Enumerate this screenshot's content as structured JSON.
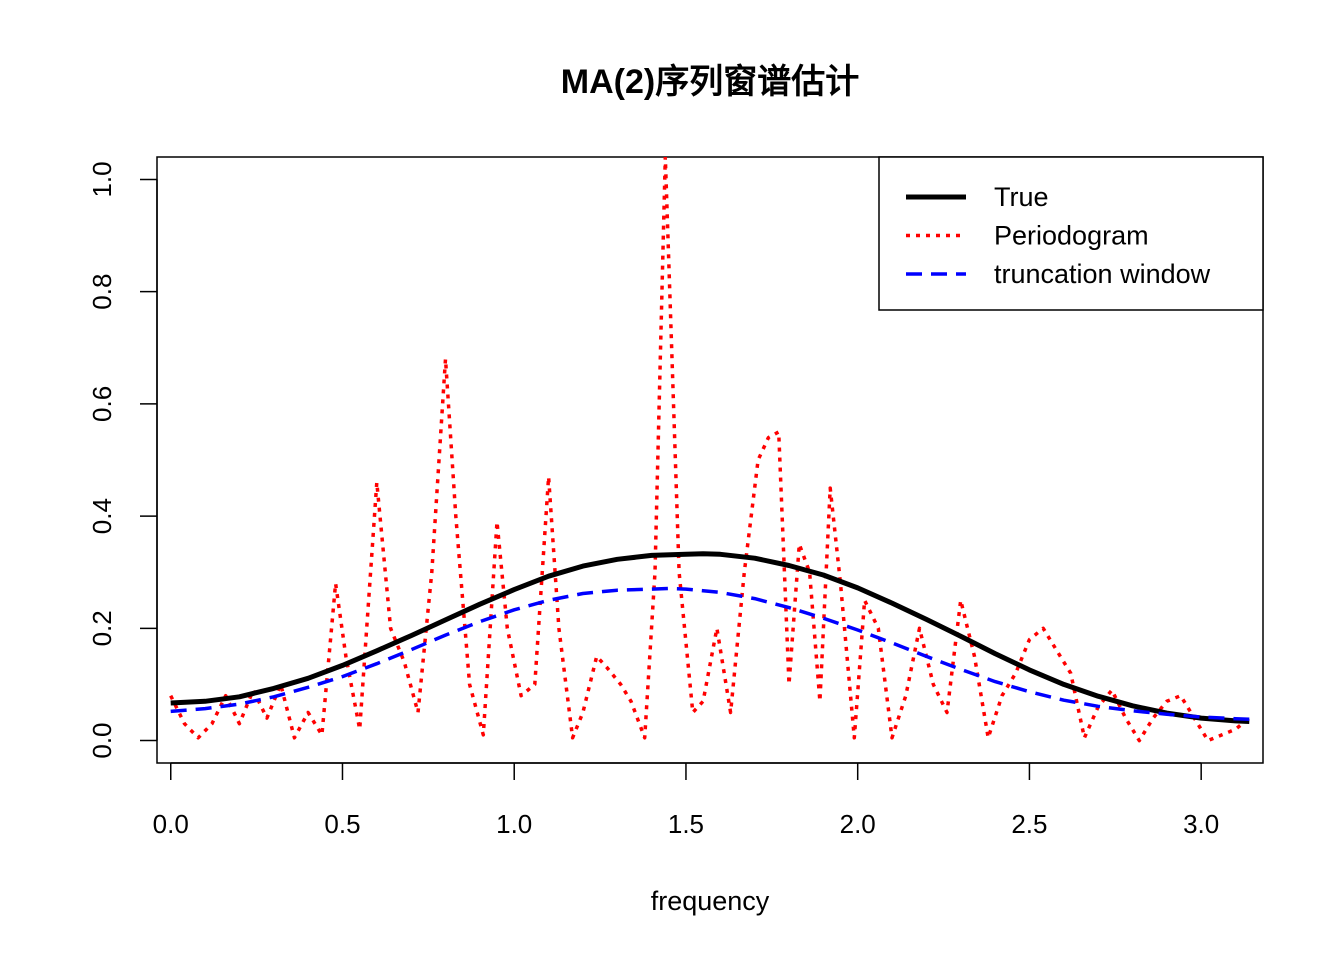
{
  "chart_data": {
    "type": "line",
    "title": "MA(2)序列窗谱估计",
    "xlabel": "frequency",
    "ylabel": "",
    "xlim": [
      -0.04,
      3.18
    ],
    "ylim": [
      -0.04,
      1.04
    ],
    "x_ticks": [
      0.0,
      0.5,
      1.0,
      1.5,
      2.0,
      2.5,
      3.0
    ],
    "x_tick_labels": [
      "0.0",
      "0.5",
      "1.0",
      "1.5",
      "2.0",
      "2.5",
      "3.0"
    ],
    "y_ticks": [
      0.0,
      0.2,
      0.4,
      0.6,
      0.8,
      1.0
    ],
    "y_tick_labels": [
      "0.0",
      "0.2",
      "0.4",
      "0.6",
      "0.8",
      "1.0"
    ],
    "grid": false,
    "legend": {
      "position": "top-right",
      "boxed": true
    },
    "series": [
      {
        "name": "True",
        "color": "#000000",
        "line_style": "solid",
        "x": [
          0.0,
          0.1,
          0.2,
          0.3,
          0.4,
          0.5,
          0.6,
          0.7,
          0.8,
          0.9,
          1.0,
          1.1,
          1.2,
          1.3,
          1.4,
          1.5,
          1.55,
          1.6,
          1.7,
          1.8,
          1.9,
          2.0,
          2.1,
          2.2,
          2.3,
          2.4,
          2.5,
          2.6,
          2.7,
          2.8,
          2.9,
          3.0,
          3.1,
          3.14
        ],
        "y": [
          0.067,
          0.07,
          0.078,
          0.093,
          0.111,
          0.134,
          0.16,
          0.187,
          0.215,
          0.243,
          0.269,
          0.293,
          0.311,
          0.323,
          0.33,
          0.332,
          0.333,
          0.332,
          0.325,
          0.312,
          0.295,
          0.272,
          0.245,
          0.216,
          0.186,
          0.155,
          0.126,
          0.1,
          0.079,
          0.062,
          0.049,
          0.04,
          0.035,
          0.034
        ]
      },
      {
        "name": "Periodogram",
        "color": "#ff0000",
        "line_style": "dotted",
        "x": [
          0.0,
          0.04,
          0.08,
          0.12,
          0.16,
          0.2,
          0.24,
          0.28,
          0.32,
          0.36,
          0.4,
          0.44,
          0.48,
          0.51,
          0.55,
          0.6,
          0.64,
          0.68,
          0.72,
          0.76,
          0.8,
          0.83,
          0.87,
          0.91,
          0.95,
          0.98,
          1.02,
          1.06,
          1.1,
          1.13,
          1.17,
          1.2,
          1.24,
          1.27,
          1.31,
          1.34,
          1.38,
          1.41,
          1.44,
          1.48,
          1.52,
          1.55,
          1.59,
          1.63,
          1.67,
          1.71,
          1.74,
          1.77,
          1.8,
          1.83,
          1.86,
          1.89,
          1.92,
          1.95,
          1.99,
          2.02,
          2.06,
          2.1,
          2.14,
          2.18,
          2.22,
          2.26,
          2.3,
          2.34,
          2.38,
          2.42,
          2.46,
          2.5,
          2.54,
          2.58,
          2.62,
          2.66,
          2.7,
          2.74,
          2.78,
          2.82,
          2.86,
          2.9,
          2.94,
          2.98,
          3.02,
          3.06,
          3.1,
          3.14
        ],
        "y": [
          0.08,
          0.03,
          0.005,
          0.03,
          0.08,
          0.03,
          0.09,
          0.04,
          0.1,
          0.005,
          0.05,
          0.01,
          0.28,
          0.15,
          0.02,
          0.46,
          0.2,
          0.14,
          0.05,
          0.3,
          0.68,
          0.4,
          0.1,
          0.01,
          0.39,
          0.2,
          0.08,
          0.1,
          0.47,
          0.2,
          0.005,
          0.05,
          0.15,
          0.13,
          0.1,
          0.07,
          0.005,
          0.3,
          1.04,
          0.3,
          0.05,
          0.07,
          0.2,
          0.05,
          0.3,
          0.5,
          0.54,
          0.55,
          0.1,
          0.35,
          0.3,
          0.07,
          0.45,
          0.28,
          0.005,
          0.25,
          0.2,
          0.005,
          0.08,
          0.2,
          0.1,
          0.05,
          0.25,
          0.15,
          0.005,
          0.08,
          0.12,
          0.18,
          0.2,
          0.16,
          0.12,
          0.005,
          0.06,
          0.09,
          0.04,
          0.0,
          0.04,
          0.07,
          0.08,
          0.04,
          0.0,
          0.01,
          0.02,
          0.04
        ]
      },
      {
        "name": "truncation window",
        "color": "#0000ff",
        "line_style": "dashed",
        "x": [
          0.0,
          0.1,
          0.2,
          0.3,
          0.4,
          0.5,
          0.6,
          0.7,
          0.8,
          0.9,
          1.0,
          1.1,
          1.2,
          1.3,
          1.4,
          1.45,
          1.5,
          1.6,
          1.7,
          1.8,
          1.9,
          2.0,
          2.1,
          2.2,
          2.3,
          2.4,
          2.5,
          2.6,
          2.7,
          2.8,
          2.9,
          3.0,
          3.1,
          3.14
        ],
        "y": [
          0.052,
          0.057,
          0.065,
          0.078,
          0.095,
          0.114,
          0.137,
          0.162,
          0.188,
          0.212,
          0.233,
          0.25,
          0.262,
          0.268,
          0.27,
          0.271,
          0.27,
          0.264,
          0.253,
          0.237,
          0.218,
          0.197,
          0.174,
          0.15,
          0.127,
          0.105,
          0.087,
          0.072,
          0.061,
          0.053,
          0.047,
          0.042,
          0.039,
          0.038
        ]
      }
    ]
  }
}
